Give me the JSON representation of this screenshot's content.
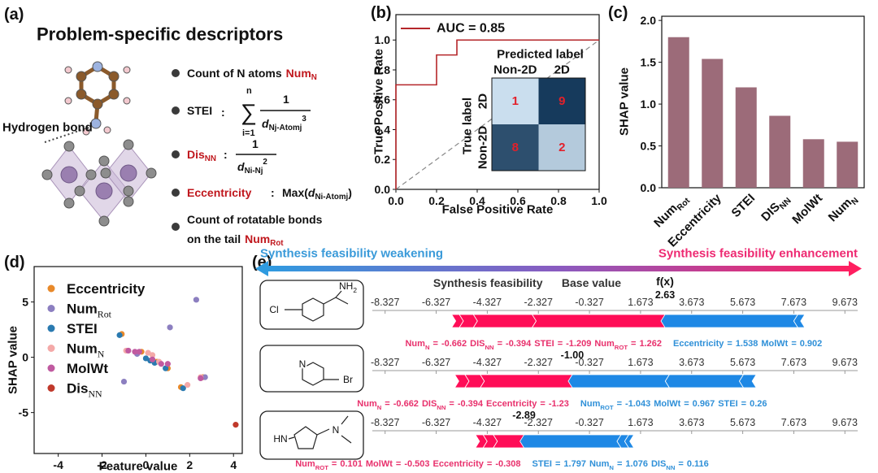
{
  "panel_labels": [
    "(a)",
    "(b)",
    "(c)",
    "(d)",
    "(e)"
  ],
  "descriptors": {
    "title": "Problem-specific descriptors",
    "hydrogen_bond": "Hydrogen bond",
    "highlight_color": "#c0171d",
    "items": [
      {
        "text": "Count of N atoms",
        "symbol": "Num",
        "symbol_sub": "N"
      },
      {
        "symbol": "STEI",
        "separator": ":",
        "sum": "∑",
        "upper": "n",
        "lower": "i=1",
        "numerator": "1",
        "d": "d",
        "d_sub": "Nj-Atomj",
        "power": "3"
      },
      {
        "symbol": "Dis",
        "symbol_sub": "NN",
        "separator": ":",
        "numerator": "1",
        "d": "d",
        "d_sub": "Ni-Nj",
        "power": "2"
      },
      {
        "symbol": "Eccentricity",
        "separator": ":",
        "prefix": "Max(",
        "d": "d",
        "d_sub": "Ni-Atomj",
        "suffix": ")"
      },
      {
        "text": "Count of rotatable bonds",
        "text_2": "on the tail",
        "symbol": "Num",
        "symbol_sub": "Rot"
      }
    ]
  },
  "chart_data": [
    {
      "type": "line",
      "x_label": "False Positive Rate",
      "y_label": "True Positive Rate",
      "x": [
        0,
        0,
        0.2,
        0.2,
        0.3,
        0.3,
        1
      ],
      "series": [
        {
          "name": "AUC = 0.85",
          "color": "#b5262a",
          "values": [
            0,
            0.7,
            0.7,
            0.9,
            0.9,
            1,
            1
          ]
        }
      ],
      "xlim": [
        0,
        1
      ],
      "ylim": [
        0,
        1.17
      ],
      "xticks": [
        {
          "value": 0,
          "label": "0.0"
        },
        0.2,
        0.4,
        0.6,
        0.8,
        {
          "value": 1,
          "label": "1.0"
        }
      ],
      "yticks": [
        {
          "value": 0,
          "label": "0.0"
        },
        0.2,
        0.4,
        0.6,
        0.8,
        {
          "value": 1,
          "label": "1.0"
        }
      ],
      "legend": "upper left",
      "reference_line": true
    },
    {
      "type": "heatmap",
      "x_label": "Predicted label",
      "y_label": "True label",
      "x_categories": [
        "Non-2D",
        "2D"
      ],
      "y_categories": [
        "2D",
        "Non-2D"
      ],
      "values": [
        [
          1,
          9
        ],
        [
          8,
          2
        ]
      ],
      "cmap": [
        "#cadeee",
        "#163a5c"
      ],
      "text_color": "#e3202a"
    },
    {
      "type": "bar",
      "y_label": "SHAP value",
      "categories": [
        "Num",
        "Eccentricity",
        "STEI",
        "DIS",
        "MolWt",
        "Num"
      ],
      "category_subscripts": [
        "Rot",
        null,
        null,
        "NN",
        null,
        "N"
      ],
      "values": [
        1.8,
        1.54,
        1.2,
        0.86,
        0.58,
        0.55
      ],
      "color": "#9c6b79",
      "ylim": [
        0,
        2.05
      ],
      "yticks": [
        {
          "value": 0,
          "label": "0.0"
        },
        0.5,
        {
          "value": 1,
          "label": "1.0"
        },
        1.5,
        {
          "value": 2,
          "label": "2.0"
        }
      ]
    },
    {
      "type": "scatter",
      "x_label": "Feature value",
      "y_label": "SHAP value",
      "xlim": [
        -5.1,
        4.4
      ],
      "ylim": [
        -8.7,
        8.2
      ],
      "xticks": [
        -4,
        -2,
        0,
        2,
        4
      ],
      "yticks": [
        -5,
        0,
        5
      ],
      "legend": "upper left",
      "series": [
        {
          "name": "Eccentricity",
          "color": "#e8892a",
          "x": [
            -1.1,
            -0.2,
            0.5,
            1.0,
            1.6,
            2.6
          ],
          "values": [
            2.1,
            0.5,
            -0.4,
            -1.0,
            -2.7,
            -1.8
          ]
        },
        {
          "name": "Num",
          "name_sub": "Rot",
          "color": "#8c7fc0",
          "x": [
            -1.0,
            1.1,
            2.3,
            -0.4,
            2.7
          ],
          "values": [
            -2.2,
            2.7,
            5.2,
            0.3,
            -1.8
          ]
        },
        {
          "name": "STEI",
          "color": "#2a7ab0",
          "x": [
            -1.2,
            0.0,
            0.2,
            0.9,
            1.7,
            0.4
          ],
          "values": [
            2.0,
            -0.1,
            -0.3,
            -1.0,
            -2.8,
            -0.5
          ]
        },
        {
          "name": "Num",
          "name_sub": "N",
          "color": "#f4a9a8",
          "x": [
            -0.9,
            0.1,
            0.3,
            2.5,
            1.9,
            0.6
          ],
          "values": [
            0.6,
            0.4,
            0.2,
            -1.8,
            -2.5,
            -0.4
          ]
        },
        {
          "name": "MolWt",
          "color": "#c05aa0",
          "x": [
            -0.8,
            -0.5,
            -0.3,
            0.3,
            0.7,
            1.0,
            2.5
          ],
          "values": [
            0.6,
            0.5,
            0.5,
            -0.2,
            -0.6,
            -0.6,
            -1.9
          ]
        },
        {
          "name": "Dis",
          "name_sub": "NN",
          "color": "#c0392b",
          "x": [
            4.1
          ],
          "values": [
            -6.1
          ]
        }
      ]
    },
    {
      "type": "force",
      "left_label": "Synthesis feasibility weakening",
      "right_label": "Synthesis feasibility enhancement",
      "positive_color": "#ff0d57",
      "negative_color": "#1e88e5",
      "output_label": "Synthesis feasibility",
      "base_label": "Base value",
      "fx_label": "f(x)",
      "equals": "=",
      "xlim": [
        -8.827,
        10.173
      ],
      "xticks": [
        -8.327,
        -6.327,
        -4.327,
        -2.327,
        -0.327,
        1.673,
        3.673,
        5.673,
        7.673,
        9.673
      ],
      "rows": [
        {
          "fx": 2.63,
          "molecule": [
            {
              "text": "Cl"
            },
            {
              "text": "NH",
              "sub": "2"
            }
          ],
          "features": [
            {
              "name": "Num",
              "sub": "N",
              "value": -0.662,
              "shap": 0.3
            },
            {
              "name": "DIS",
              "sub": "NN",
              "value": -0.394,
              "shap": 0.55
            },
            {
              "name": "STEI",
              "value": -1.209,
              "shap": 2.3
            },
            {
              "name": "Num",
              "sub": "ROT",
              "value": 1.262,
              "shap": 5.2
            },
            {
              "name": "Eccentricity",
              "value": 1.538,
              "shap": -5.2
            },
            {
              "name": "MolWt",
              "value": 0.902,
              "shap": -0.27
            }
          ]
        },
        {
          "fx": -1,
          "fx_label": "-1.00",
          "molecule": [
            {
              "text": "N"
            },
            {
              "text": "Br"
            }
          ],
          "features": [
            {
              "name": "Num",
              "sub": "N",
              "value": -0.662,
              "shap": 0.4
            },
            {
              "name": "DIS",
              "sub": "NN",
              "value": -0.394,
              "shap": 0.6
            },
            {
              "name": "Eccentricity",
              "value": -1.23,
              "shap": 3.6
            },
            {
              "name": "Num",
              "sub": "ROT",
              "value": -1.043,
              "shap": -3.8
            },
            {
              "name": "MolWt",
              "value": 0.967,
              "shap": -2.9
            },
            {
              "name": "STEI",
              "value": 0.26,
              "shap": -0.5
            }
          ]
        },
        {
          "fx": -2.89,
          "molecule": [
            {
              "text": "HN"
            },
            {
              "text": "N"
            }
          ],
          "features": [
            {
              "name": "Num",
              "sub": "ROT",
              "value": 0.101,
              "shap": 0.3
            },
            {
              "name": "MolWt",
              "value": -0.503,
              "shap": 0.4
            },
            {
              "name": "Eccentricity",
              "value": -0.308,
              "shap": 1.2
            },
            {
              "name": "STEI",
              "value": 1.797,
              "shap": -3.8
            },
            {
              "name": "Num",
              "sub": "N",
              "value": 1.076,
              "shap": -0.3
            },
            {
              "name": "DIS",
              "sub": "NN",
              "value": 0.116,
              "shap": -0.2
            }
          ]
        }
      ]
    }
  ]
}
